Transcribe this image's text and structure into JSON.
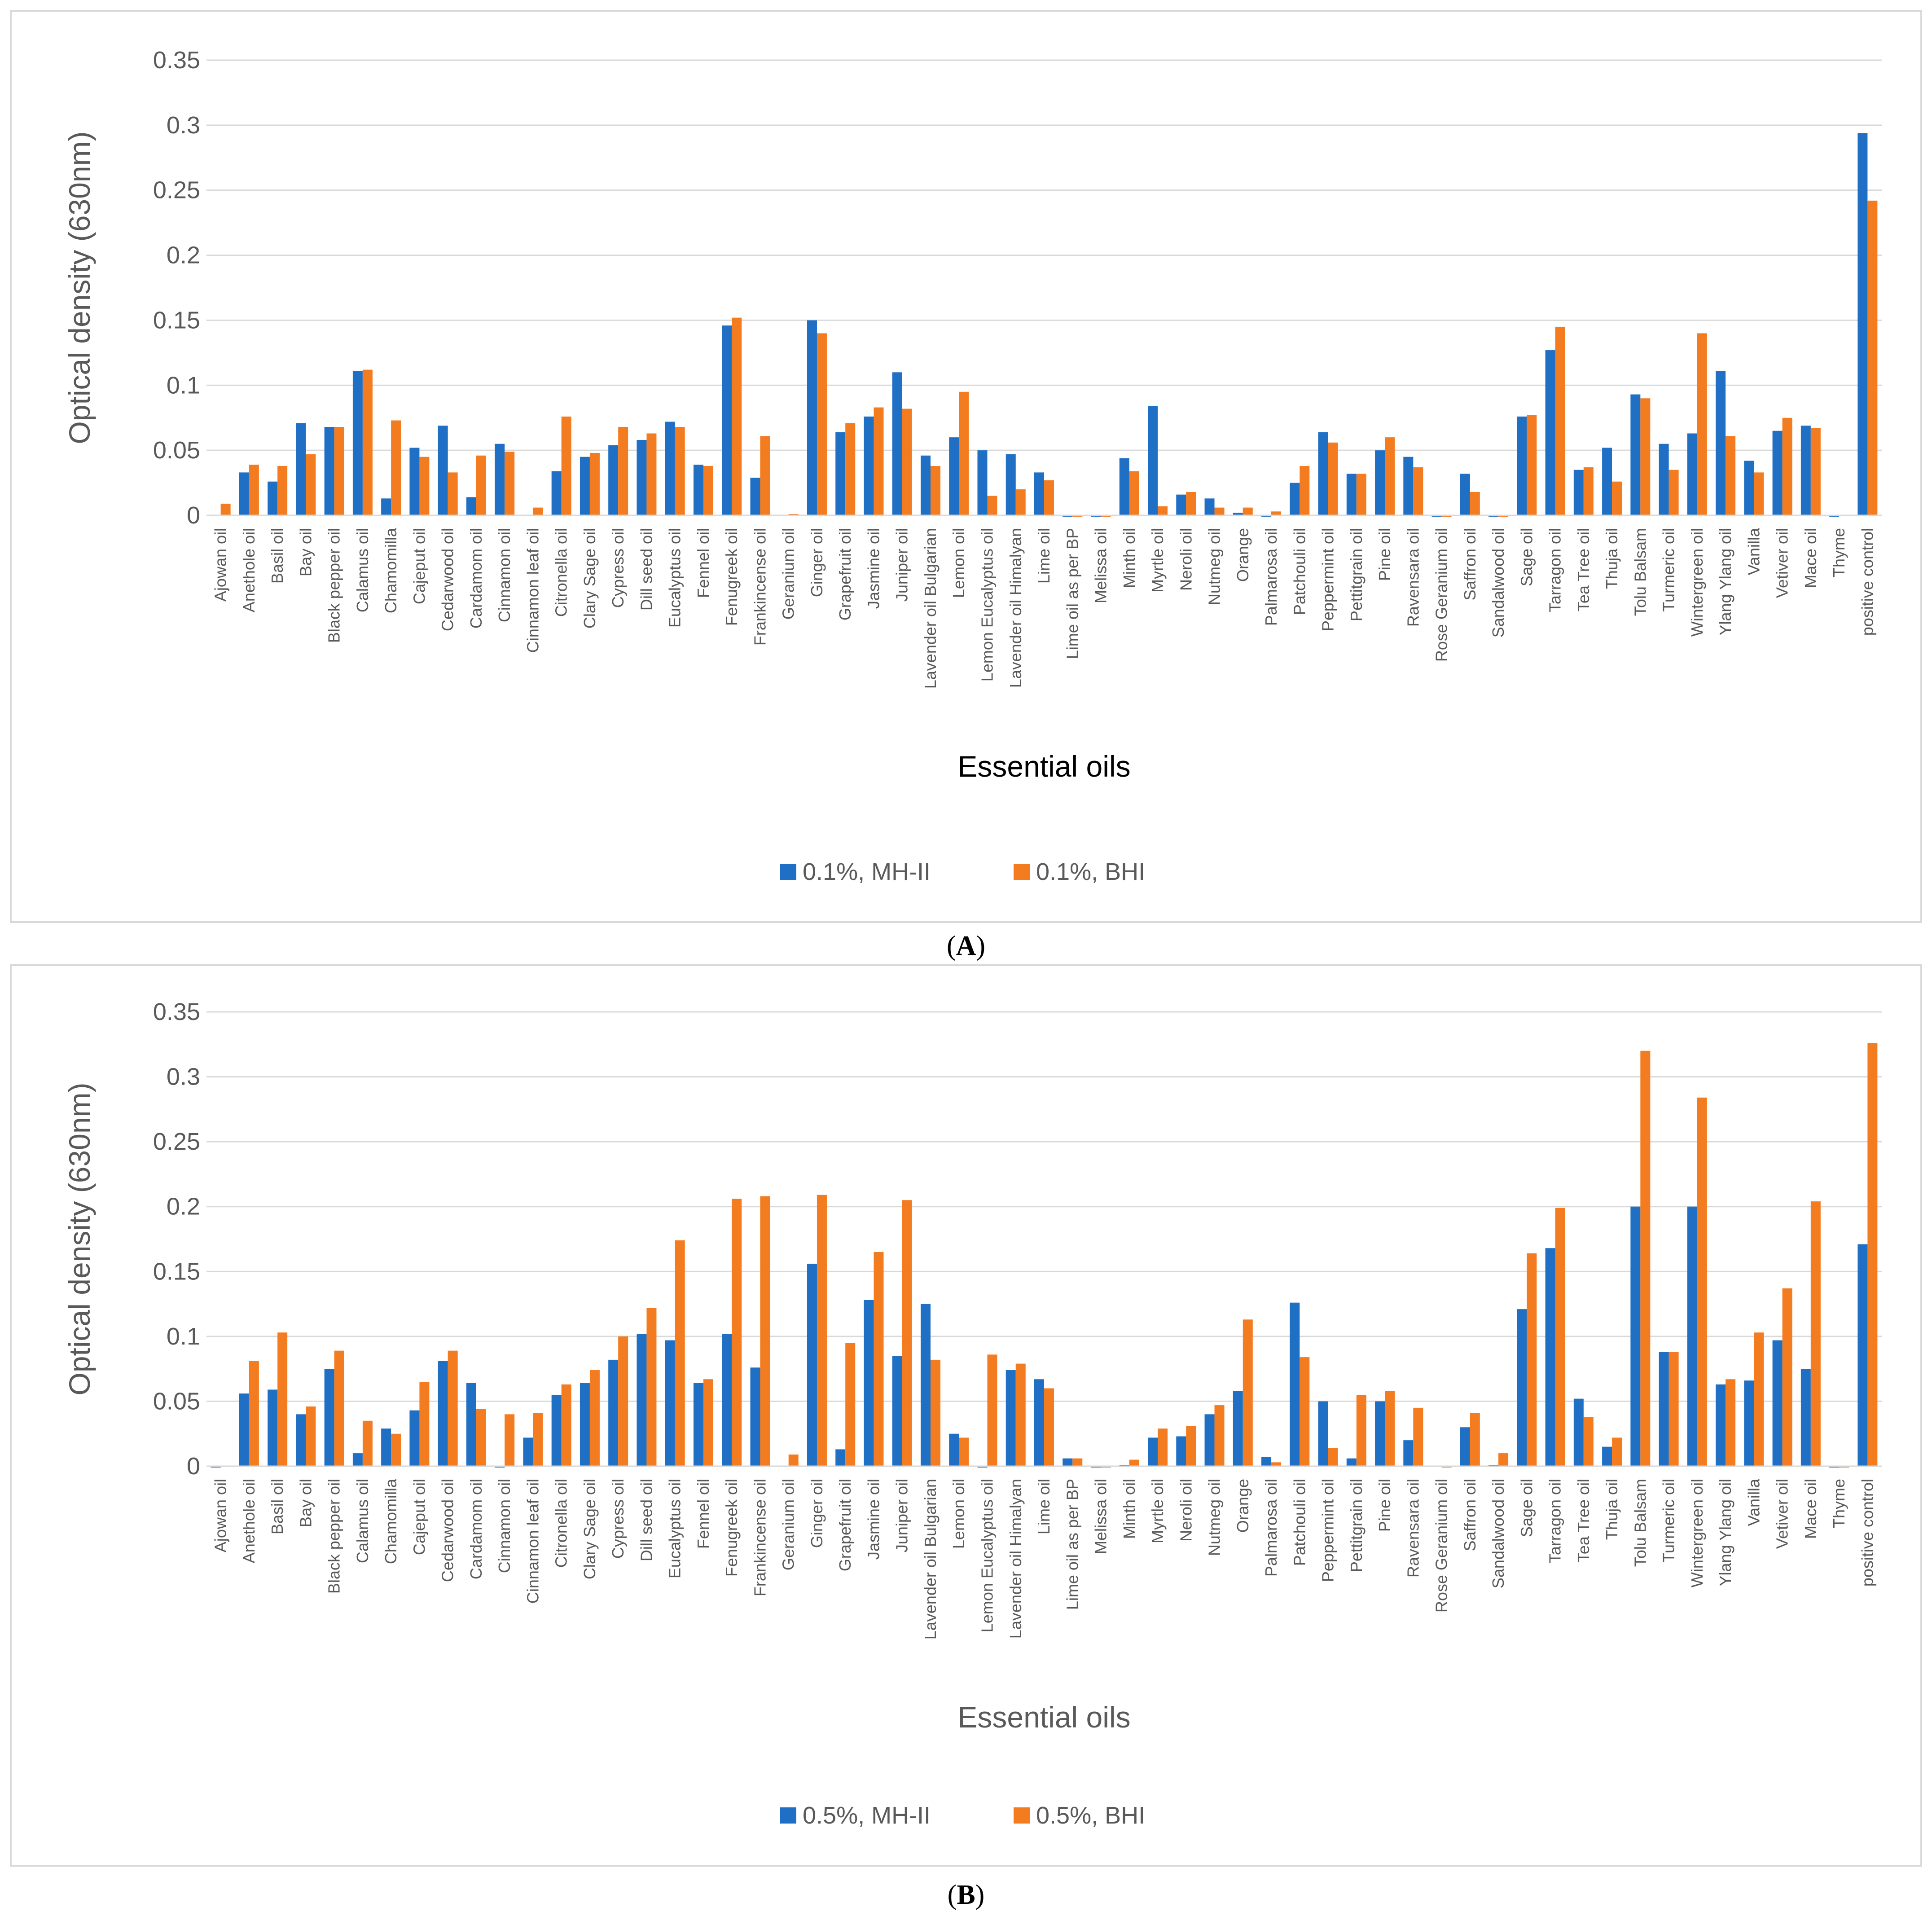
{
  "chart_data": [
    {
      "type": "bar",
      "panel_label": "A",
      "xlabel": "Essential oils",
      "ylabel": "Optical density (630nm)",
      "ylim": [
        0,
        0.35
      ],
      "yticks": [
        "0",
        "0.05",
        "0.1",
        "0.15",
        "0.2",
        "0.25",
        "0.3",
        "0.35"
      ],
      "grid": true,
      "legend_position": "bottom",
      "categories": [
        "Ajowan oil",
        "Anethole oil",
        "Basil oil",
        "Bay oil",
        "Black pepper oil",
        "Calamus oil",
        "Chamomilla",
        "Cajeput oil",
        "Cedarwood oil",
        "Cardamom oil",
        "Cinnamon oil",
        "Cinnamon leaf oil",
        "Citronella oil",
        "Clary Sage oil",
        "Cypress oil",
        "Dill seed oil",
        "Eucalyptus oil",
        "Fennel oil",
        "Fenugreek oil",
        "Frankincense oil",
        "Geranium oil",
        "Ginger oil",
        "Grapefruit oil",
        "Jasmine oil",
        "Juniper oil",
        "Lavender oil Bulgarian",
        "Lemon oil",
        "Lemon Eucalyptus oil",
        "Lavender oil Himalyan",
        "Lime oil",
        "Lime oil as per BP",
        "Melissa oil",
        "Minth oil",
        "Myrtle oil",
        "Neroli oil",
        "Nutmeg oil",
        "Orange",
        "Palmarosa oil",
        "Patchouli oil",
        "Peppermint oil",
        "Pettitgrain oil",
        "Pine oil",
        "Ravensara oil",
        "Rose Geranium oil",
        "Saffron oil",
        "Sandalwood oil",
        "Sage oil",
        "Tarragon oil",
        "Tea Tree oil",
        "Thuja oil",
        "Tolu Balsam",
        "Turmeric oil",
        "Wintergreen oil",
        "Ylang Ylang oil",
        "Vanilla",
        "Vetiver oil",
        "Mace oil",
        "Thyme",
        "positive control"
      ],
      "series": [
        {
          "name": "0.1%, MH-II",
          "color": "#1f6fc5",
          "values": [
            0,
            0.033,
            0.026,
            0.071,
            0.068,
            0.111,
            0.013,
            0.052,
            0.069,
            0.014,
            0.055,
            0,
            0.034,
            0.045,
            0.054,
            0.058,
            0.072,
            0.039,
            0.146,
            0.029,
            0,
            0.15,
            0.064,
            0.076,
            0.11,
            0.046,
            0.06,
            0.05,
            0.047,
            0.033,
            -0.001,
            -0.001,
            0.044,
            0.084,
            0.016,
            0.013,
            0.002,
            -0.001,
            0.025,
            0.064,
            0.032,
            0.05,
            0.045,
            -0.001,
            0.032,
            -0.001,
            0.076,
            0.127,
            0.035,
            0.052,
            0.093,
            0.055,
            0.063,
            0.111,
            0.042,
            0.065,
            0.069,
            -0.001,
            0.294
          ]
        },
        {
          "name": "0.1%, BHI",
          "color": "#f47c20",
          "values": [
            0.009,
            0.039,
            0.038,
            0.047,
            0.068,
            0.112,
            0.073,
            0.045,
            0.033,
            0.046,
            0.049,
            0.006,
            0.076,
            0.048,
            0.068,
            0.063,
            0.068,
            0.038,
            0.152,
            0.061,
            0.001,
            0.14,
            0.071,
            0.083,
            0.082,
            0.038,
            0.095,
            0.015,
            0.02,
            0.027,
            -0.001,
            -0.001,
            0.034,
            0.007,
            0.018,
            0.006,
            0.006,
            0.003,
            0.038,
            0.056,
            0.032,
            0.06,
            0.037,
            -0.001,
            0.018,
            -0.001,
            0.077,
            0.145,
            0.037,
            0.026,
            0.09,
            0.035,
            0.14,
            0.061,
            0.033,
            0.075,
            0.067,
            0,
            0.242
          ]
        }
      ]
    },
    {
      "type": "bar",
      "panel_label": "B",
      "xlabel": "Essential oils",
      "ylabel": "Optical density (630nm)",
      "ylim": [
        0,
        0.35
      ],
      "yticks": [
        "0",
        "0.05",
        "0.1",
        "0.15",
        "0.2",
        "0.25",
        "0.3",
        "0.35"
      ],
      "grid": true,
      "legend_position": "bottom",
      "categories": [
        "Ajowan oil",
        "Anethole oil",
        "Basil oil",
        "Bay oil",
        "Black pepper oil",
        "Calamus oil",
        "Chamomilla",
        "Cajeput oil",
        "Cedarwood oil",
        "Cardamom oil",
        "Cinnamon oil",
        "Cinnamon leaf oil",
        "Citronella oil",
        "Clary Sage oil",
        "Cypress oil",
        "Dill seed oil",
        "Eucalyptus oil",
        "Fennel oil",
        "Fenugreek oil",
        "Frankincense oil",
        "Geranium oil",
        "Ginger oil",
        "Grapefruit oil",
        "Jasmine oil",
        "Juniper oil",
        "Lavender oil Bulgarian",
        "Lemon oil",
        "Lemon Eucalyptus oil",
        "Lavender oil Himalyan",
        "Lime oil",
        "Lime oil as per BP",
        "Melissa oil",
        "Minth oil",
        "Myrtle oil",
        "Neroli oil",
        "Nutmeg oil",
        "Orange",
        "Palmarosa oil",
        "Patchouli oil",
        "Peppermint oil",
        "Pettitgrain oil",
        "Pine oil",
        "Ravensara oil",
        "Rose Geranium oil",
        "Saffron oil",
        "Sandalwood oil",
        "Sage oil",
        "Tarragon oil",
        "Tea Tree oil",
        "Thuja oil",
        "Tolu Balsam",
        "Turmeric oil",
        "Wintergreen oil",
        "Ylang Ylang oil",
        "Vanilla",
        "Vetiver oil",
        "Mace oil",
        "Thyme",
        "positive control"
      ],
      "series": [
        {
          "name": "0.5%, MH-II",
          "color": "#1f6fc5",
          "values": [
            -0.001,
            0.056,
            0.059,
            0.04,
            0.075,
            0.01,
            0.029,
            0.043,
            0.081,
            0.064,
            -0.001,
            0.022,
            0.055,
            0.064,
            0.082,
            0.102,
            0.097,
            0.064,
            0.102,
            0.076,
            0,
            0.156,
            0.013,
            0.128,
            0.085,
            0.125,
            0.025,
            -0.001,
            0.074,
            0.067,
            0.006,
            -0.001,
            0.001,
            0.022,
            0.023,
            0.04,
            0.058,
            0.007,
            0.126,
            0.05,
            0.006,
            0.05,
            0.02,
            0,
            0.03,
            0.001,
            0.121,
            0.168,
            0.052,
            0.015,
            0.2,
            0.088,
            0.2,
            0.063,
            0.066,
            0.097,
            0.075,
            -0.001,
            0.171
          ]
        },
        {
          "name": "0.5%, BHI",
          "color": "#f47c20",
          "values": [
            0,
            0.081,
            0.103,
            0.046,
            0.089,
            0.035,
            0.025,
            0.065,
            0.089,
            0.044,
            0.04,
            0.041,
            0.063,
            0.074,
            0.1,
            0.122,
            0.174,
            0.067,
            0.206,
            0.208,
            0.009,
            0.209,
            0.095,
            0.165,
            0.205,
            0.082,
            0.022,
            0.086,
            0.079,
            0.06,
            0.006,
            -0.001,
            0.005,
            0.029,
            0.031,
            0.047,
            0.113,
            0.003,
            0.084,
            0.014,
            0.055,
            0.058,
            0.045,
            -0.001,
            0.041,
            0.01,
            0.164,
            0.199,
            0.038,
            0.022,
            0.32,
            0.088,
            0.284,
            0.067,
            0.103,
            0.137,
            0.204,
            -0.001,
            0.326
          ]
        }
      ]
    }
  ],
  "captions": {
    "A": "A",
    "B": "B"
  }
}
